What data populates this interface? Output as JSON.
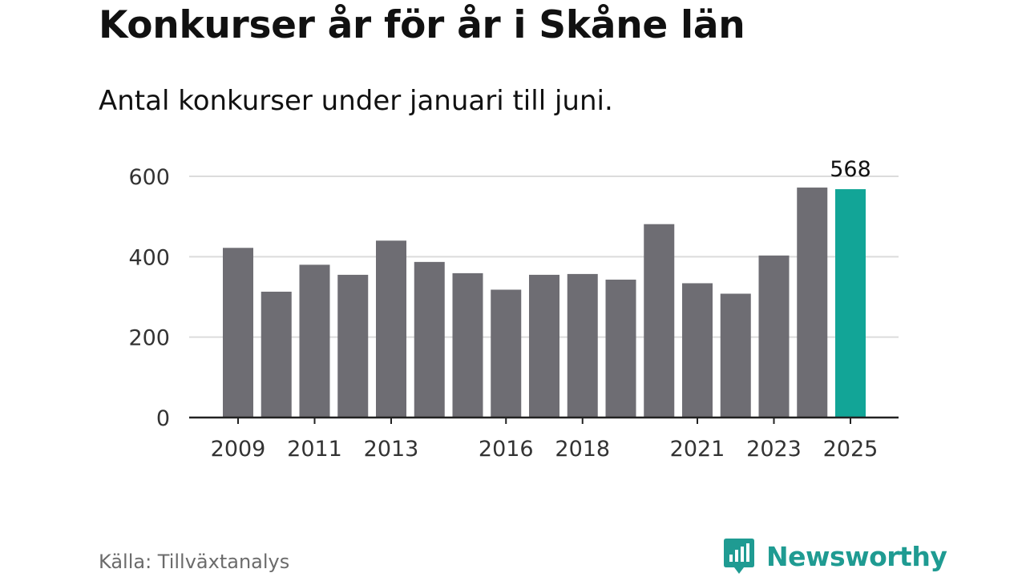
{
  "title": "Konkurser år för år i Skåne län",
  "subtitle": "Antal konkurser under januari till juni.",
  "source": "Källa: Tillväxtanalys",
  "brand": {
    "name": "Newsworthy",
    "icon": "bar-chart-speech-bubble-icon",
    "color": "#1f9b92"
  },
  "colors": {
    "bar": "#6e6d73",
    "highlight": "#12a597",
    "grid": "#dcdcdc",
    "axis": "#222222"
  },
  "chart_data": {
    "type": "bar",
    "categories": [
      "2009",
      "2010",
      "2011",
      "2012",
      "2013",
      "2014",
      "2015",
      "2016",
      "2017",
      "2018",
      "2019",
      "2020",
      "2021",
      "2022",
      "2023",
      "2024",
      "2025"
    ],
    "values": [
      422,
      313,
      380,
      355,
      440,
      387,
      359,
      318,
      355,
      357,
      343,
      481,
      334,
      308,
      403,
      572,
      568
    ],
    "highlight": "2025",
    "data_labels": {
      "2025": "568"
    },
    "x_tick_labels": [
      "2009",
      "2011",
      "2013",
      "2016",
      "2018",
      "2021",
      "2023",
      "2025"
    ],
    "y_ticks": [
      0,
      200,
      400,
      600
    ],
    "ylim": [
      0,
      600
    ],
    "grid": true
  }
}
